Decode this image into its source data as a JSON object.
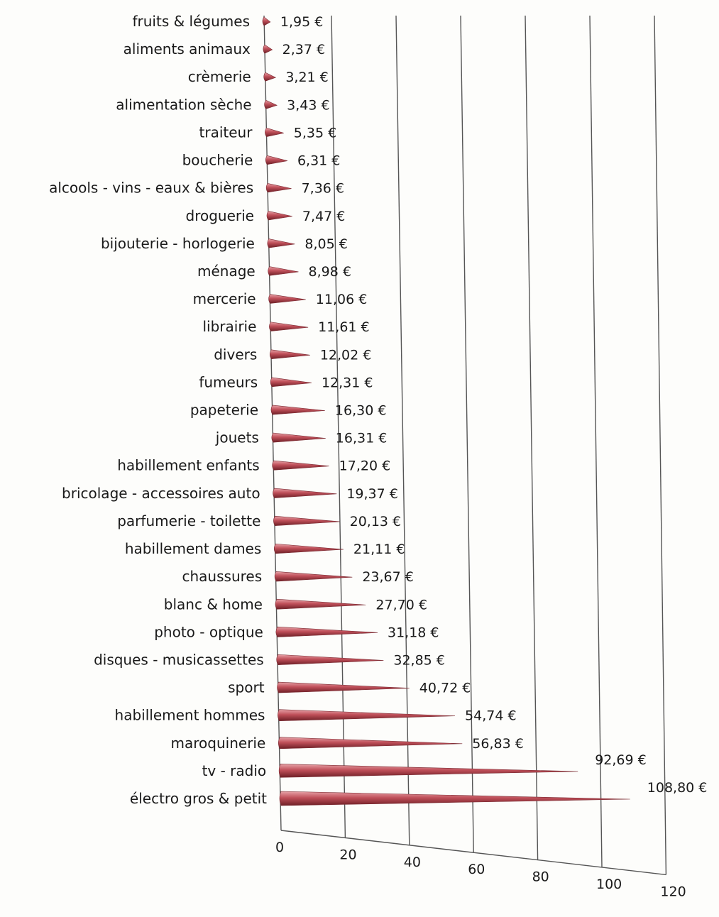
{
  "chart_data": {
    "type": "bar",
    "orientation": "horizontal",
    "style": "3d-cone",
    "bar_color": "#c0505a",
    "grid": true,
    "xlim": [
      0,
      120
    ],
    "x_ticks": [
      "0",
      "20",
      "40",
      "60",
      "80",
      "100",
      "120"
    ],
    "categories": [
      "fruits & légumes",
      "aliments animaux",
      "crèmerie",
      "alimentation sèche",
      "traiteur",
      "boucherie",
      "alcools - vins - eaux & bières",
      "droguerie",
      "bijouterie - horlogerie",
      "ménage",
      "mercerie",
      "librairie",
      "divers",
      "fumeurs",
      "papeterie",
      "jouets",
      "habillement enfants",
      "bricolage - accessoires auto",
      "parfumerie - toilette",
      "habillement dames",
      "chaussures",
      "blanc & home",
      "photo - optique",
      "disques - musicassettes",
      "sport",
      "habillement hommes",
      "maroquinerie",
      "tv - radio",
      "électro gros & petit"
    ],
    "values": [
      1.95,
      2.37,
      3.21,
      3.43,
      5.35,
      6.31,
      7.36,
      7.47,
      8.05,
      8.98,
      11.06,
      11.61,
      12.02,
      12.31,
      16.3,
      16.31,
      17.2,
      19.37,
      20.13,
      21.11,
      23.67,
      27.7,
      31.18,
      32.85,
      40.72,
      54.74,
      56.83,
      92.69,
      108.8
    ],
    "value_labels": [
      "1,95 €",
      "2,37 €",
      "3,21 €",
      "3,43 €",
      "5,35 €",
      "6,31 €",
      "7,36 €",
      "7,47 €",
      "8,05 €",
      "8,98 €",
      "11,06 €",
      "11,61 €",
      "12,02 €",
      "12,31 €",
      "16,30 €",
      "16,31 €",
      "17,20 €",
      "19,37 €",
      "20,13 €",
      "21,11 €",
      "23,67 €",
      "27,70 €",
      "31,18 €",
      "32,85 €",
      "40,72 €",
      "54,74 €",
      "56,83 €",
      "92,69 €",
      "108,80 €"
    ]
  }
}
